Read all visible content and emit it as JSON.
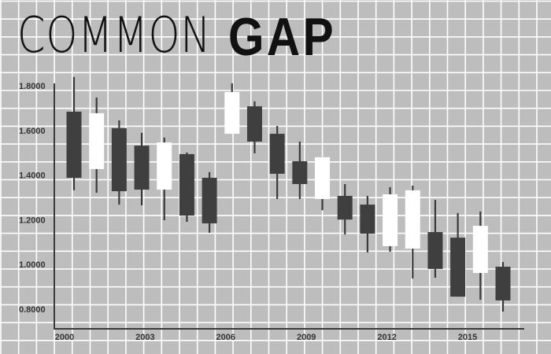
{
  "chart_data": {
    "type": "candlestick",
    "title_light": "COMMON",
    "title_bold": "GAP",
    "xlabel": "",
    "ylabel": "",
    "ylim": [
      0.8,
      1.8
    ],
    "y_ticks": [
      "1.8000",
      "1.6000",
      "1.4000",
      "1.2000",
      "1.0000",
      "0.8000"
    ],
    "y_tick_values": [
      1.8,
      1.6,
      1.4,
      1.2,
      1.0,
      0.8
    ],
    "x_ticks": [
      "2000",
      "2003",
      "2006",
      "2009",
      "2012",
      "2015"
    ],
    "grid": true,
    "colors": {
      "background": "#bdbdbd",
      "grid": "#ffffff",
      "bearish": "#3f3f3f",
      "bullish": "#ffffff",
      "axis": "#3a3a3a"
    },
    "candles": [
      {
        "open": 1.684,
        "high": 1.839,
        "low": 1.332,
        "close": 1.388
      },
      {
        "open": 1.427,
        "high": 1.747,
        "low": 1.321,
        "close": 1.677
      },
      {
        "open": 1.61,
        "high": 1.645,
        "low": 1.268,
        "close": 1.328
      },
      {
        "open": 1.532,
        "high": 1.589,
        "low": 1.265,
        "close": 1.335
      },
      {
        "open": 1.335,
        "high": 1.568,
        "low": 1.198,
        "close": 1.546
      },
      {
        "open": 1.494,
        "high": 1.501,
        "low": 1.191,
        "close": 1.219
      },
      {
        "open": 1.388,
        "high": 1.413,
        "low": 1.142,
        "close": 1.184
      },
      {
        "open": 1.585,
        "high": 1.811,
        "low": 1.585,
        "close": 1.772
      },
      {
        "open": 1.708,
        "high": 1.73,
        "low": 1.497,
        "close": 1.55
      },
      {
        "open": 1.585,
        "high": 1.62,
        "low": 1.293,
        "close": 1.406
      },
      {
        "open": 1.462,
        "high": 1.55,
        "low": 1.293,
        "close": 1.36
      },
      {
        "open": 1.293,
        "high": 1.48,
        "low": 1.243,
        "close": 1.48
      },
      {
        "open": 1.307,
        "high": 1.36,
        "low": 1.134,
        "close": 1.201
      },
      {
        "open": 1.268,
        "high": 1.307,
        "low": 1.054,
        "close": 1.138
      },
      {
        "open": 1.082,
        "high": 1.346,
        "low": 1.057,
        "close": 1.314
      },
      {
        "open": 1.071,
        "high": 1.353,
        "low": 0.937,
        "close": 1.332
      },
      {
        "open": 1.145,
        "high": 1.289,
        "low": 0.941,
        "close": 0.98
      },
      {
        "open": 1.12,
        "high": 1.23,
        "low": 0.856,
        "close": 0.856
      },
      {
        "open": 0.962,
        "high": 1.237,
        "low": 0.842,
        "close": 1.173
      },
      {
        "open": 0.99,
        "high": 1.011,
        "low": 0.789,
        "close": 0.839
      }
    ]
  }
}
